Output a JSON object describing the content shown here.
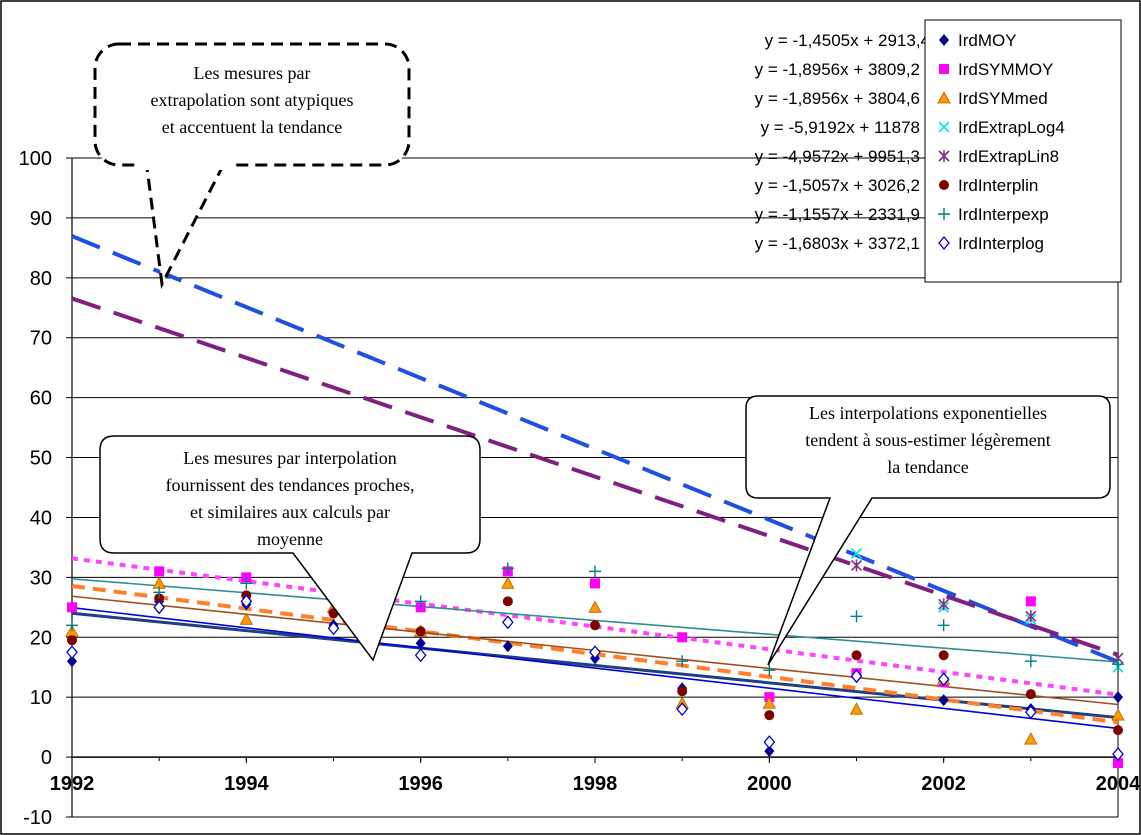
{
  "chart_data": {
    "type": "scatter",
    "title": "",
    "xlabel": "",
    "ylabel": "",
    "xlim": [
      1992,
      2004
    ],
    "ylim": [
      -10,
      100
    ],
    "x_ticks": [
      "1992",
      "1994",
      "1996",
      "1998",
      "2000",
      "2002",
      "2004"
    ],
    "y_ticks": [
      "-10",
      "0",
      "10",
      "20",
      "30",
      "40",
      "50",
      "60",
      "70",
      "80",
      "90",
      "100"
    ],
    "grid": "horizontal",
    "legend_position": "top-right",
    "x": [
      1992,
      1993,
      1994,
      1995,
      1996,
      1997,
      1998,
      1999,
      2000,
      2001,
      2002,
      2003,
      2004
    ],
    "series": [
      {
        "name": "IrdMOY",
        "marker": "diamond",
        "color": "#00008B",
        "values": [
          16,
          26,
          25.5,
          22,
          19,
          18.5,
          16.5,
          11.5,
          1,
          13.5,
          9.5,
          8,
          10
        ],
        "trend": {
          "slope": -1.4505,
          "intercept": 2913.4,
          "equation": "y = -1,4505x + 2913,4",
          "from": 1992,
          "to": 2004,
          "color": "#1F3F7F",
          "dash": "solid",
          "width": 3
        }
      },
      {
        "name": "IrdSYMMOY",
        "marker": "square",
        "color": "#FF00FF",
        "values": [
          25,
          31,
          30,
          31,
          25,
          31,
          29,
          20,
          10,
          14,
          12.5,
          26,
          -1
        ],
        "trend": {
          "slope": -1.8956,
          "intercept": 3809.2,
          "equation": "y = -1,8956x + 3809,2",
          "from": 1992,
          "to": 2004,
          "color": "#FF44FF",
          "dash": "dotted",
          "width": 4
        }
      },
      {
        "name": "IrdSYMmed",
        "marker": "triangle",
        "color": "#FF9900",
        "values": [
          21,
          29,
          23,
          25,
          21,
          29,
          25,
          9,
          9,
          8,
          13,
          3,
          7
        ],
        "trend": {
          "slope": -1.8956,
          "intercept": 3804.6,
          "equation": "y = -1,8956x + 3804,6",
          "from": 1992,
          "to": 2004,
          "color": "#FF7F2A",
          "dash": "dashed",
          "width": 4
        }
      },
      {
        "name": "IrdExtrapLog4",
        "marker": "x",
        "color": "#00E5E5",
        "values": [
          null,
          null,
          null,
          null,
          null,
          null,
          null,
          null,
          null,
          34,
          25,
          23,
          15
        ],
        "trend": {
          "slope": -5.9192,
          "intercept": 11878,
          "equation": "y = -5,9192x + 11878",
          "from": 1992,
          "to": 2004,
          "color": "#1F4FE5",
          "dash": "longdash",
          "width": 4
        }
      },
      {
        "name": "IrdExtrapLin8",
        "marker": "star",
        "color": "#7F2F7F",
        "values": [
          null,
          null,
          null,
          null,
          null,
          null,
          null,
          null,
          null,
          32,
          25.5,
          23.5,
          16.5
        ],
        "trend": {
          "slope": -4.9572,
          "intercept": 9951.3,
          "equation": "y = -4,9572x + 9951,3",
          "from": 1992,
          "to": 2004,
          "color": "#7F1F7F",
          "dash": "longdash",
          "width": 4
        }
      },
      {
        "name": "IrdInterplin",
        "marker": "circle",
        "color": "#800000",
        "values": [
          19.5,
          26.5,
          27,
          24,
          21,
          26,
          22,
          11,
          7,
          17,
          17,
          10.5,
          4.5
        ],
        "trend": {
          "slope": -1.5057,
          "intercept": 3026.2,
          "equation": "y = -1,5057x + 3026,2",
          "from": 1992,
          "to": 2004,
          "color": "#A0501E",
          "dash": "solid",
          "width": 1.6
        }
      },
      {
        "name": "IrdInterpexp",
        "marker": "plus",
        "color": "#008080",
        "values": [
          22,
          27.5,
          29,
          27.5,
          26,
          31.5,
          31,
          16,
          14.5,
          23.5,
          22,
          16,
          15.5
        ],
        "trend": {
          "slope": -1.1557,
          "intercept": 2331.9,
          "equation": "y = -1,1557x + 2331,9",
          "from": 1992,
          "to": 2004,
          "color": "#2F8F8F",
          "dash": "solid",
          "width": 1.6
        }
      },
      {
        "name": "IrdInterplog",
        "marker": "diamond-open",
        "color": "#0000CC",
        "values": [
          17.5,
          25,
          26,
          21.5,
          17,
          22.5,
          17.5,
          8,
          2.5,
          13.5,
          13,
          7.5,
          0.5
        ],
        "trend": {
          "slope": -1.6803,
          "intercept": 3372.1,
          "equation": "y = -1,6803x + 3372,1",
          "from": 1992,
          "to": 2004,
          "color": "#0000E0",
          "dash": "solid",
          "width": 1.6
        }
      }
    ],
    "annotations": [
      {
        "id": "extrapolation",
        "lines": [
          "Les mesures par",
          "extrapolation sont atypiques",
          "et accentuent la tendance"
        ]
      },
      {
        "id": "interpolation",
        "lines": [
          "Les mesures par interpolation",
          "fournissent des tendances proches,",
          "et similaires aux calculs par",
          "moyenne"
        ]
      },
      {
        "id": "exponential",
        "lines": [
          "Les interpolations exponentielles",
          "tendent à sous-estimer légèrement",
          "la tendance"
        ]
      }
    ]
  }
}
